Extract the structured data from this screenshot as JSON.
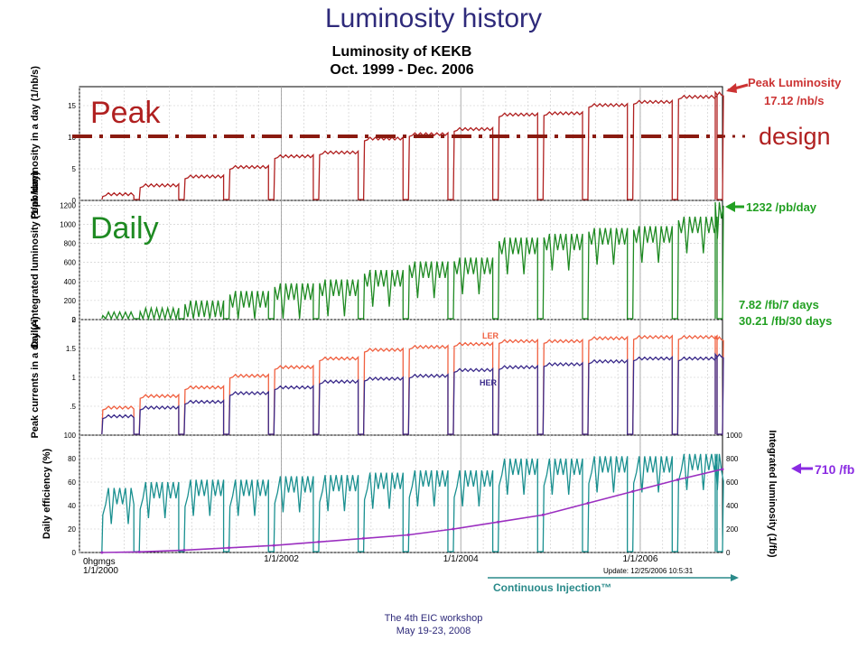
{
  "slide": {
    "title": "Luminosity history",
    "footer_line1": "The 4th EIC workshop",
    "footer_line2": "May 19-23, 2008"
  },
  "figure": {
    "title_line1": "Luminosity of KEKB",
    "title_line2": "Oct. 1999 - Dec. 2006",
    "update_text": "Update: 12/25/2006 10:5:31",
    "continuous_injection": "Continuous Injection™",
    "x_start_label": "1/1/2000",
    "x_start_glyph": "0hgmgs"
  },
  "overlay": {
    "peak": "Peak",
    "daily": "Daily",
    "design": "design"
  },
  "annotations": {
    "peak_line1": "Peak Luminosity",
    "peak_line2": "17.12 /nb/s",
    "daily": "1232 /pb/day",
    "weekly": "7.82 /fb/7 days",
    "monthly": "30.21 /fb/30 days",
    "integrated": "710 /fb"
  },
  "colors": {
    "peak": "#b02020",
    "daily": "#1e8a22",
    "ler": "#f06040",
    "her": "#3a2a8a",
    "efficiency": "#1a9090",
    "integrated": "#9b2fc0",
    "annotation_red": "#cc3333",
    "annotation_green": "#22a022",
    "annotation_purple": "#8a2be2",
    "title": "#2e2a7a",
    "injection": "#2a8a8a"
  },
  "chart_data": [
    {
      "type": "line",
      "ylabel": "Peak luminosity in a day (1/nb/s)",
      "ylim": [
        0,
        18
      ],
      "yticks": [
        "0",
        "5",
        "10",
        "15"
      ],
      "design_value": 10,
      "series": [
        {
          "name": "Peak",
          "x": [
            "2000-01",
            "2000-06",
            "2000-12",
            "2001-06",
            "2001-12",
            "2002-06",
            "2002-12",
            "2003-06",
            "2003-12",
            "2004-06",
            "2004-12",
            "2005-06",
            "2005-12",
            "2006-06",
            "2006-12"
          ],
          "values": [
            1.2,
            2.6,
            4.0,
            5.5,
            7.2,
            7.8,
            10.0,
            10.7,
            11.5,
            13.8,
            14.0,
            15.3,
            15.8,
            16.6,
            17.12
          ]
        }
      ]
    },
    {
      "type": "line",
      "ylabel": "Daily integrated luminosity (1/pb/day)",
      "ylim": [
        0,
        1250
      ],
      "yticks": [
        "0",
        "200",
        "400",
        "600",
        "800",
        "1000",
        "1200"
      ],
      "series": [
        {
          "name": "Daily",
          "x": [
            "2000-01",
            "2000-06",
            "2000-12",
            "2001-06",
            "2001-12",
            "2002-06",
            "2002-12",
            "2003-06",
            "2003-12",
            "2004-06",
            "2004-12",
            "2005-06",
            "2005-12",
            "2006-06",
            "2006-12"
          ],
          "values": [
            80,
            120,
            200,
            300,
            380,
            420,
            520,
            610,
            650,
            860,
            900,
            960,
            980,
            1080,
            1232
          ]
        }
      ]
    },
    {
      "type": "line",
      "ylabel": "Peak currents in a day (A)",
      "ylim": [
        0,
        2
      ],
      "yticks": [
        ".5",
        "1",
        "1.5",
        "2"
      ],
      "series": [
        {
          "name": "LER",
          "x": [
            "2000-01",
            "2000-06",
            "2000-12",
            "2001-06",
            "2001-12",
            "2002-06",
            "2002-12",
            "2003-06",
            "2003-12",
            "2004-06",
            "2004-12",
            "2005-06",
            "2005-12",
            "2006-06",
            "2006-12"
          ],
          "values": [
            0.5,
            0.7,
            0.85,
            1.05,
            1.2,
            1.35,
            1.5,
            1.55,
            1.6,
            1.65,
            1.65,
            1.7,
            1.72,
            1.72,
            1.7
          ]
        },
        {
          "name": "HER",
          "x": [
            "2000-01",
            "2000-06",
            "2000-12",
            "2001-06",
            "2001-12",
            "2002-06",
            "2002-12",
            "2003-06",
            "2003-12",
            "2004-06",
            "2004-12",
            "2005-06",
            "2005-12",
            "2006-06",
            "2006-12"
          ],
          "values": [
            0.35,
            0.5,
            0.6,
            0.75,
            0.85,
            0.95,
            1.0,
            1.05,
            1.15,
            1.2,
            1.25,
            1.3,
            1.35,
            1.35,
            1.4
          ]
        }
      ]
    },
    {
      "type": "line",
      "ylabel": "Daily efficiency (%)",
      "ylabel_right": "Integrated luminosity (1/fb)",
      "ylim": [
        0,
        100
      ],
      "ylim_right": [
        0,
        1000
      ],
      "yticks": [
        "0",
        "20",
        "40",
        "60",
        "80",
        "100"
      ],
      "yticks_right": [
        "0",
        "200",
        "400",
        "600",
        "800",
        "1000"
      ],
      "series": [
        {
          "name": "Efficiency",
          "x": [
            "2000-01",
            "2000-06",
            "2000-12",
            "2001-06",
            "2001-12",
            "2002-06",
            "2002-12",
            "2003-06",
            "2003-12",
            "2004-06",
            "2004-12",
            "2005-06",
            "2005-12",
            "2006-06",
            "2006-12"
          ],
          "values": [
            55,
            60,
            62,
            62,
            65,
            66,
            68,
            70,
            70,
            80,
            80,
            82,
            82,
            84,
            84
          ]
        },
        {
          "name": "Integrated",
          "x": [
            "2000-01",
            "2000-06",
            "2000-12",
            "2001-06",
            "2001-12",
            "2002-06",
            "2002-12",
            "2003-06",
            "2003-12",
            "2004-06",
            "2004-12",
            "2005-06",
            "2005-12",
            "2006-06",
            "2006-12"
          ],
          "values": [
            0,
            5,
            20,
            40,
            60,
            90,
            120,
            150,
            200,
            260,
            320,
            420,
            520,
            620,
            710
          ]
        }
      ]
    }
  ],
  "x_axis": {
    "tick_labels": [
      "1/1/2002",
      "1/1/2004",
      "1/1/2006"
    ],
    "tick_dates": [
      "2002-01",
      "2004-01",
      "2006-01"
    ],
    "start": "1999-10",
    "end": "2006-12"
  },
  "lines": {
    "ler": "LER",
    "her": "HER"
  }
}
